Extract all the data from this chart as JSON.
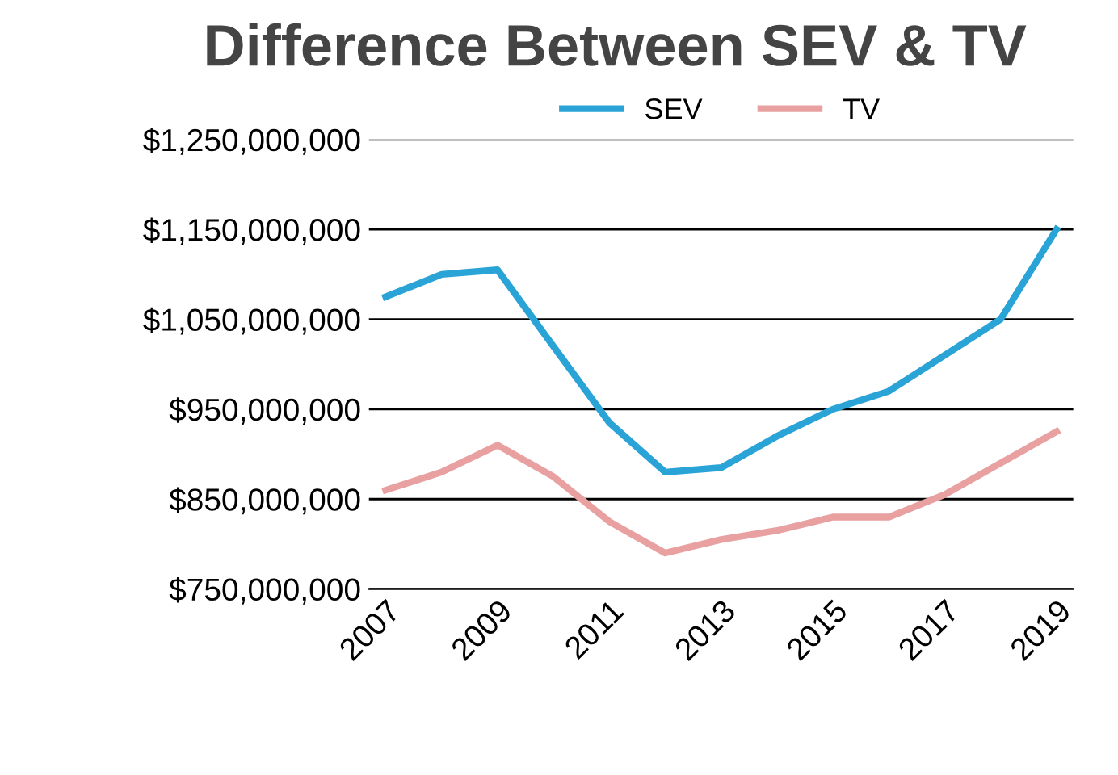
{
  "chart_data": {
    "type": "line",
    "title": "Difference Between SEV & TV",
    "categories": [
      "2007",
      null,
      "2009",
      null,
      "2011",
      null,
      "2013",
      null,
      "2015",
      null,
      "2017",
      null,
      "2019"
    ],
    "series": [
      {
        "name": "SEV",
        "color": "#2aa4d6",
        "values": [
          1075000000,
          1100000000,
          1105000000,
          1020000000,
          935000000,
          880000000,
          885000000,
          920000000,
          950000000,
          970000000,
          1010000000,
          1050000000,
          1150000000
        ]
      },
      {
        "name": "TV",
        "color": "#e8a0a0",
        "values": [
          860000000,
          880000000,
          910000000,
          875000000,
          825000000,
          790000000,
          805000000,
          815000000,
          830000000,
          830000000,
          855000000,
          890000000,
          925000000
        ]
      }
    ],
    "ylim": [
      750000000,
      1250000000
    ],
    "yticks": [
      {
        "value": 750000000,
        "label": "$750,000,000"
      },
      {
        "value": 850000000,
        "label": "$850,000,000"
      },
      {
        "value": 950000000,
        "label": "$950,000,000"
      },
      {
        "value": 1050000000,
        "label": "$1,050,000,000"
      },
      {
        "value": 1150000000,
        "label": "$1,150,000,000"
      },
      {
        "value": 1250000000,
        "label": "$1,250,000,000"
      }
    ],
    "grid": "y",
    "legend": "top",
    "marker": "none",
    "line_style": "solid"
  }
}
